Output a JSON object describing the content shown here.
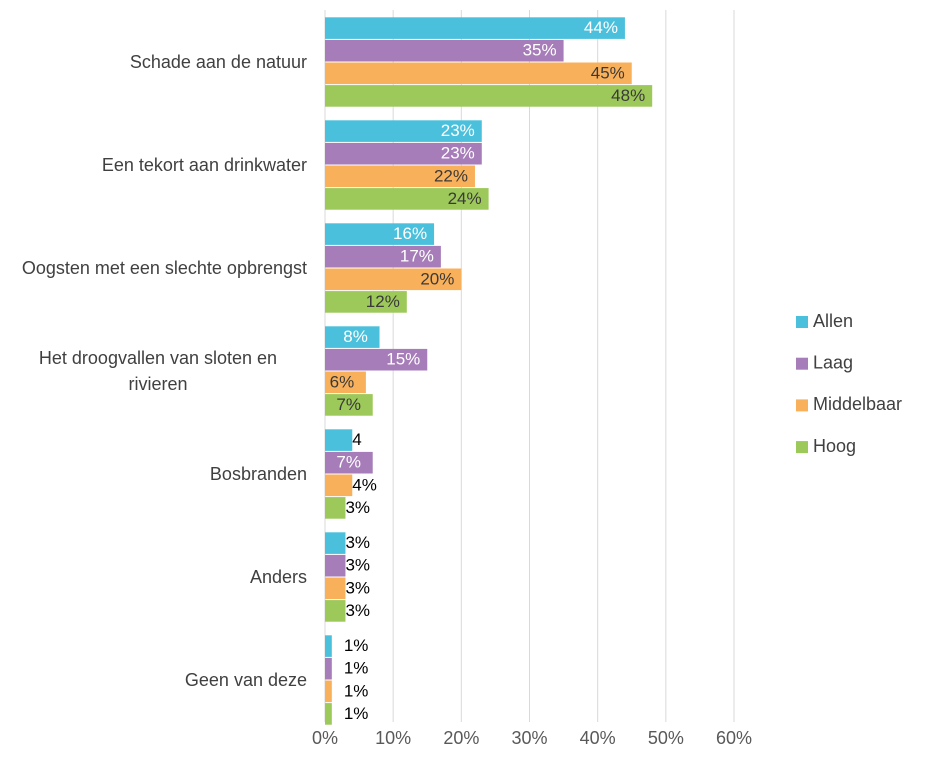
{
  "chart_data": {
    "type": "bar",
    "orientation": "horizontal",
    "categories": [
      "Schade aan de natuur",
      "Een tekort aan drinkwater",
      "Oogsten met een slechte opbrengst",
      "Het droogvallen van sloten en rivieren",
      "Bosbranden",
      "Anders",
      "Geen van deze"
    ],
    "series": [
      {
        "name": "Allen",
        "color": "#4bc0dc",
        "values": [
          44,
          23,
          16,
          8,
          4,
          3,
          1
        ],
        "value_labels": [
          "44%",
          "23%",
          "16%",
          "8%",
          "4",
          "3%",
          "1%"
        ]
      },
      {
        "name": "Laag",
        "color": "#a67db8",
        "values": [
          35,
          23,
          17,
          15,
          7,
          3,
          1
        ],
        "value_labels": [
          "35%",
          "23%",
          "17%",
          "15%",
          "7%",
          "3%",
          "1%"
        ]
      },
      {
        "name": "Middelbaar",
        "color": "#f9b05a",
        "values": [
          45,
          22,
          20,
          6,
          4,
          3,
          1
        ],
        "value_labels": [
          "45%",
          "22%",
          "20%",
          "6%",
          "4%",
          "3%",
          "1%"
        ]
      },
      {
        "name": "Hoog",
        "color": "#9dc85a",
        "values": [
          48,
          24,
          12,
          7,
          3,
          3,
          1
        ],
        "value_labels": [
          "48%",
          "24%",
          "12%",
          "7%",
          "3%",
          "3%",
          "1%"
        ]
      }
    ],
    "xlim": [
      0,
      60
    ],
    "xticks": [
      {
        "value": 0,
        "label": "0%"
      },
      {
        "value": 10,
        "label": "10%"
      },
      {
        "value": 20,
        "label": "20%"
      },
      {
        "value": 30,
        "label": "30%"
      },
      {
        "value": 40,
        "label": "40%"
      },
      {
        "value": 50,
        "label": "50%"
      },
      {
        "value": 60,
        "label": "60%"
      }
    ],
    "grid": true,
    "legend": "right"
  }
}
